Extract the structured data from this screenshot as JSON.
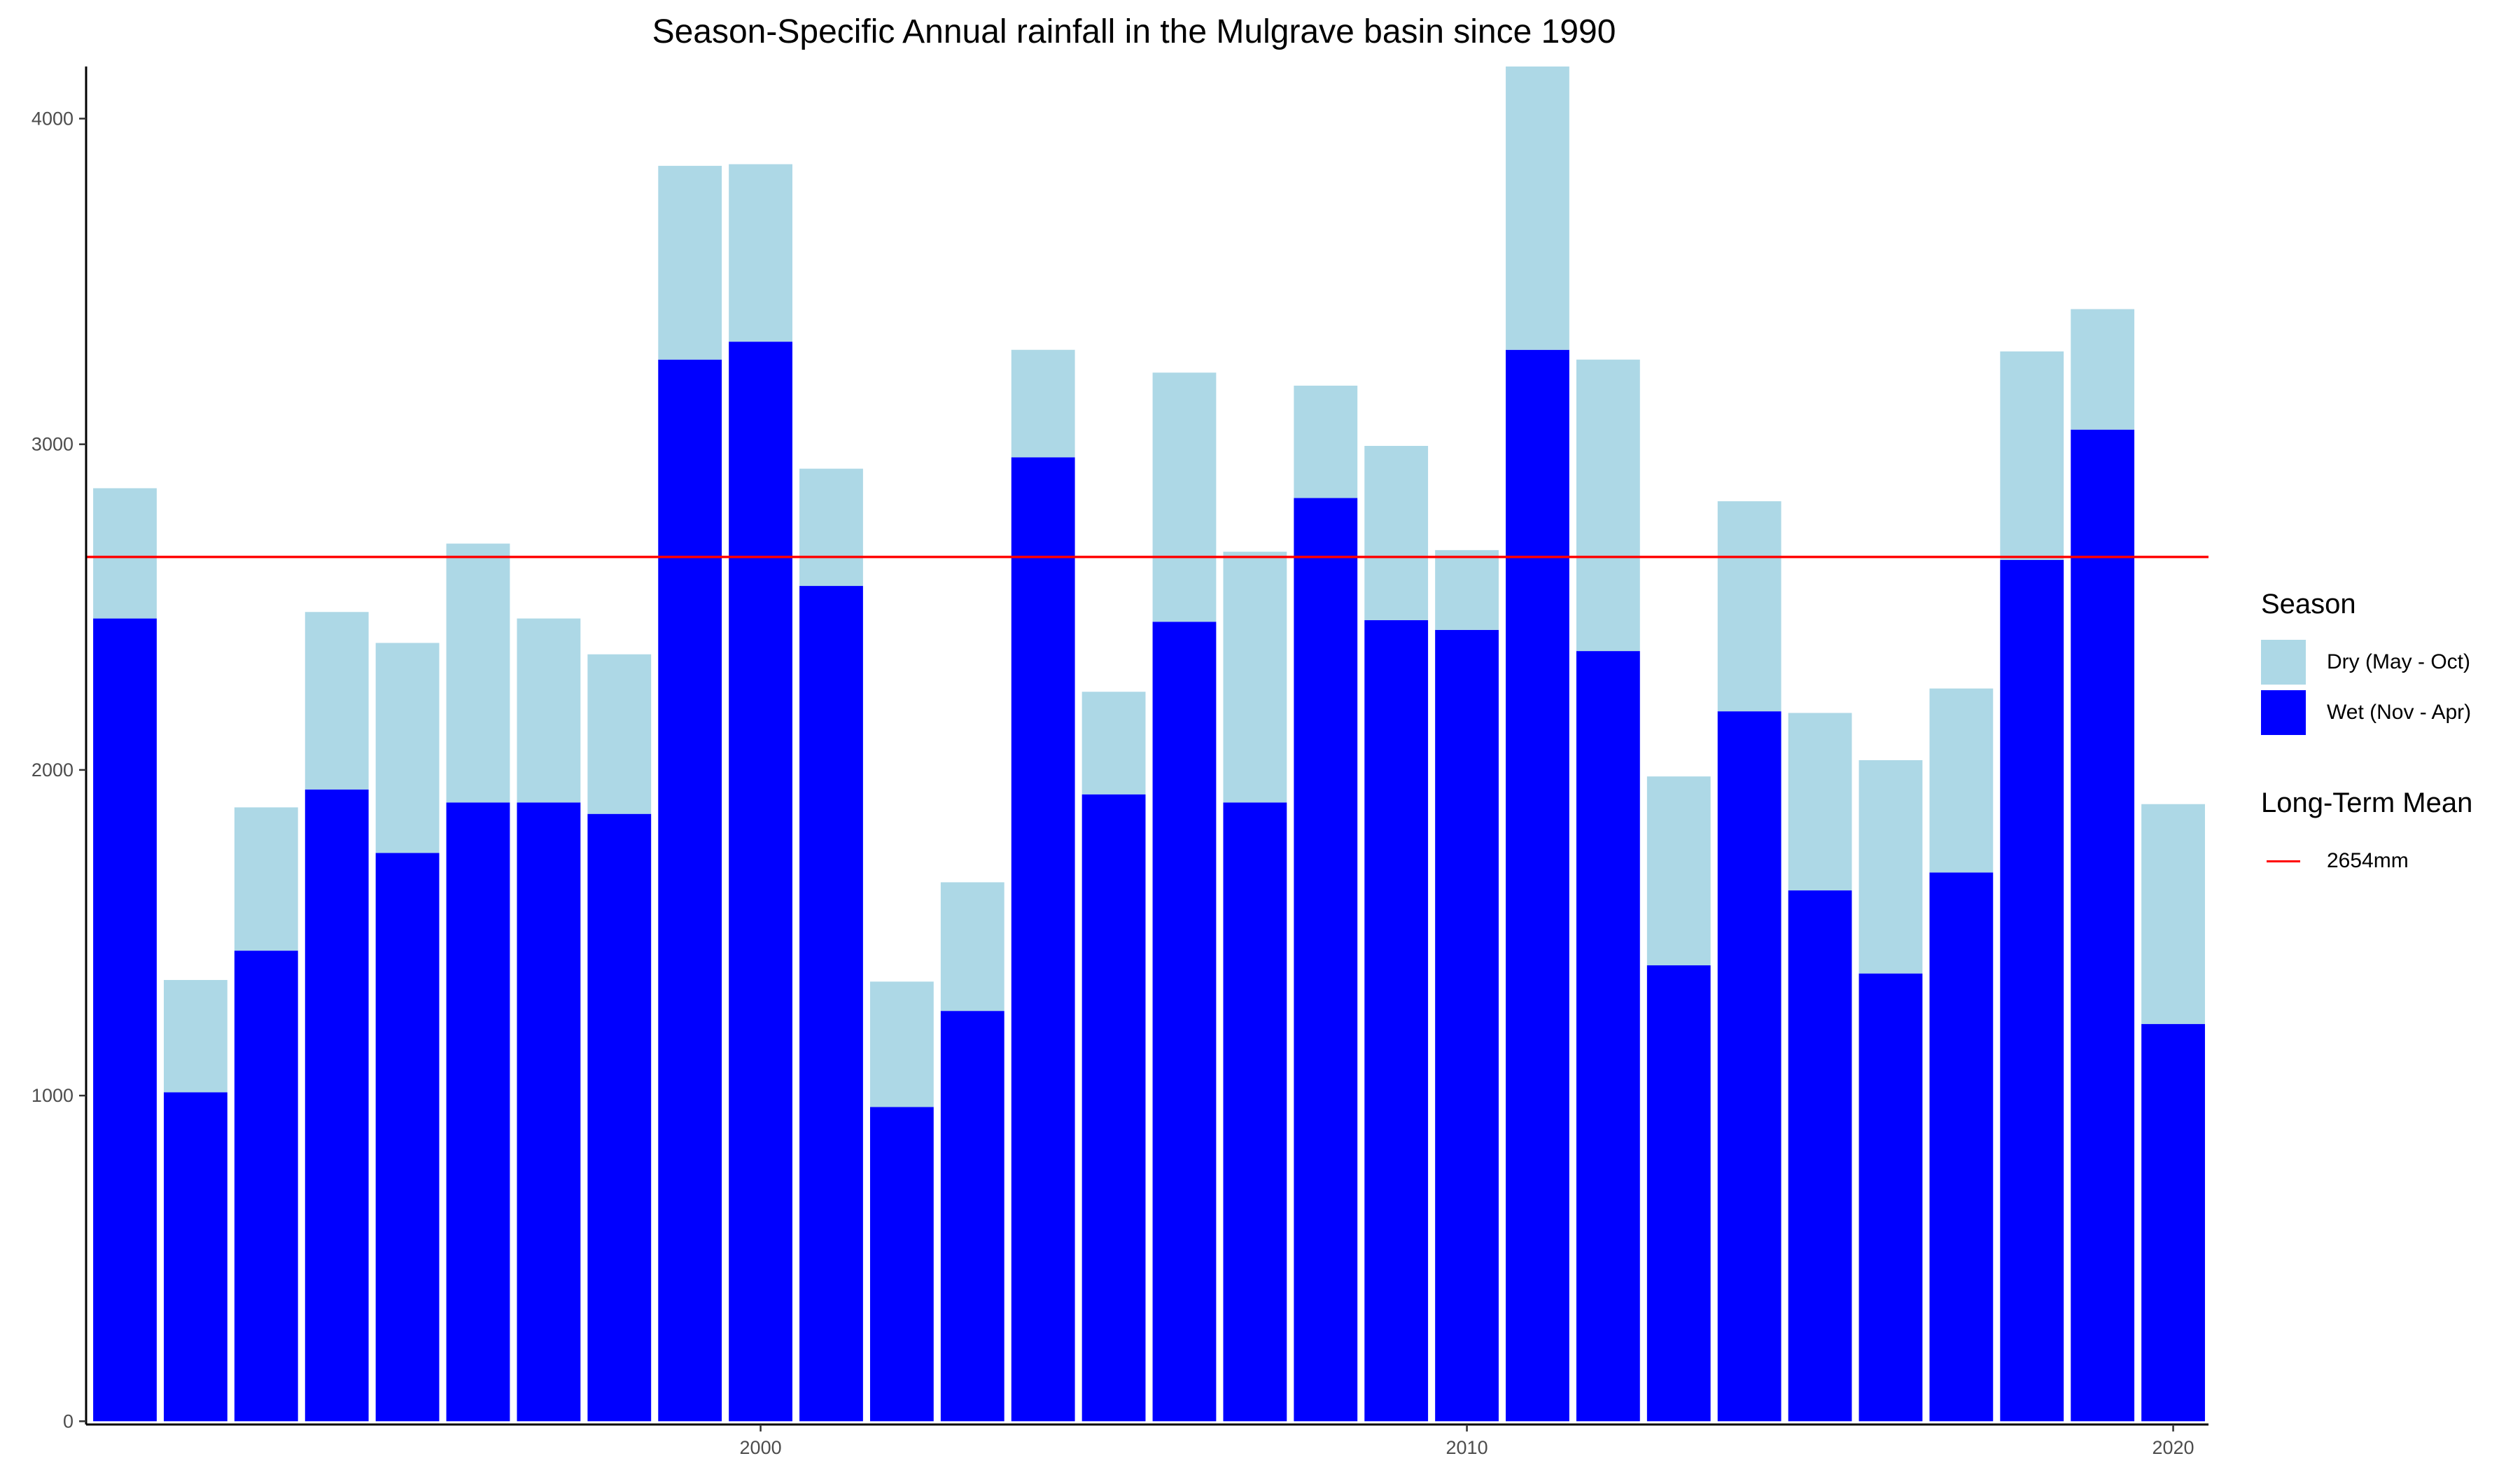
{
  "chart_data": {
    "type": "bar",
    "stacked": true,
    "title": "Season-Specific Annual rainfall in the Mulgrave basin since 1990",
    "xlabel": "",
    "ylabel": "",
    "x": [
      1991,
      1992,
      1993,
      1994,
      1995,
      1996,
      1997,
      1998,
      1999,
      2000,
      2001,
      2002,
      2003,
      2004,
      2005,
      2006,
      2007,
      2008,
      2009,
      2010,
      2011,
      2012,
      2013,
      2014,
      2015,
      2016,
      2017,
      2018,
      2019,
      2020
    ],
    "series": [
      {
        "name": "Wet (Nov - Apr)",
        "color": "#0000ff",
        "values": [
          2465,
          1010,
          1445,
          1940,
          1745,
          1900,
          1900,
          1865,
          3260,
          3315,
          2565,
          965,
          1260,
          2960,
          1925,
          2455,
          1900,
          2835,
          2460,
          2430,
          3290,
          2365,
          1400,
          2180,
          1630,
          1375,
          1685,
          2645,
          3045,
          1220
        ]
      },
      {
        "name": "Dry (May - Oct)",
        "color": "#add8e6",
        "values": [
          400,
          345,
          440,
          545,
          645,
          795,
          565,
          490,
          595,
          545,
          360,
          385,
          395,
          330,
          315,
          765,
          770,
          345,
          535,
          245,
          880,
          895,
          580,
          645,
          545,
          655,
          565,
          640,
          370,
          675
        ]
      }
    ],
    "ylim": [
      -10,
      4160
    ],
    "xlim": [
      1990.45,
      2020.5
    ],
    "yticks": [
      0,
      1000,
      2000,
      3000,
      4000
    ],
    "xticks": [
      2000,
      2010,
      2020
    ],
    "grid": false,
    "legend_position": "right",
    "mean_line": {
      "value": 2654,
      "color": "#ff0000"
    }
  },
  "legend": {
    "season_title": "Season",
    "items": [
      {
        "label": "Dry (May - Oct)",
        "color": "#add8e6"
      },
      {
        "label": "Wet (Nov - Apr)",
        "color": "#0000ff"
      }
    ],
    "mean_title": "Long-Term Mean",
    "mean_label": "2654mm"
  }
}
